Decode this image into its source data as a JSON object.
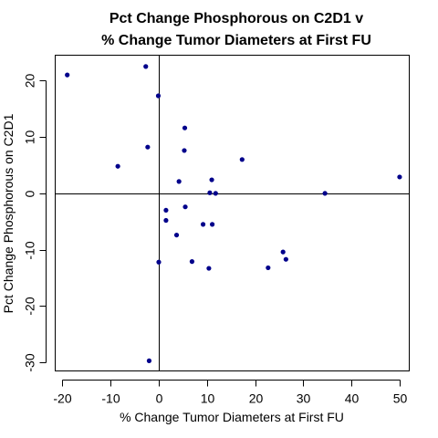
{
  "chart_data": {
    "type": "scatter",
    "title_lines": [
      "Pct Change Phosphorous on C2D1 v",
      "% Change Tumor Diameters at First FU"
    ],
    "xlabel": "% Change Tumor Diameters at First FU",
    "ylabel": "Pct Change Phosphorous on C2D1",
    "xlim": [
      -21.5,
      52
    ],
    "ylim": [
      -31.5,
      24.5
    ],
    "x_ticks": [
      -20,
      -10,
      0,
      10,
      20,
      30,
      40,
      50
    ],
    "y_ticks": [
      -30,
      -20,
      -10,
      0,
      10,
      20
    ],
    "reference_lines": {
      "x": 0,
      "y": 0
    },
    "point_color": "#00008B",
    "grid": false,
    "legend": "none",
    "points": [
      {
        "x": -19,
        "y": 21
      },
      {
        "x": -2.7,
        "y": 22.5
      },
      {
        "x": -0.1,
        "y": 17.3
      },
      {
        "x": 5.4,
        "y": 11.6
      },
      {
        "x": -2.3,
        "y": 8.2
      },
      {
        "x": 5.3,
        "y": 7.6
      },
      {
        "x": -8.5,
        "y": 4.8
      },
      {
        "x": 17.3,
        "y": 6.0
      },
      {
        "x": 4.2,
        "y": 2.1
      },
      {
        "x": 11.0,
        "y": 2.4
      },
      {
        "x": 50,
        "y": 2.9
      },
      {
        "x": 10.6,
        "y": 0.1
      },
      {
        "x": 11.8,
        "y": 0.0
      },
      {
        "x": 34.5,
        "y": 0.0
      },
      {
        "x": 5.5,
        "y": -2.4
      },
      {
        "x": 1.5,
        "y": -3.0
      },
      {
        "x": 1.5,
        "y": -4.8
      },
      {
        "x": 9.2,
        "y": -5.5
      },
      {
        "x": 11.1,
        "y": -5.5
      },
      {
        "x": 3.7,
        "y": -7.4
      },
      {
        "x": 25.8,
        "y": -10.4
      },
      {
        "x": 26.4,
        "y": -11.7
      },
      {
        "x": 0.0,
        "y": -12.2
      },
      {
        "x": 6.9,
        "y": -12.1
      },
      {
        "x": 10.4,
        "y": -13.3
      },
      {
        "x": 22.7,
        "y": -13.2
      },
      {
        "x": -2.0,
        "y": -29.7
      }
    ]
  }
}
